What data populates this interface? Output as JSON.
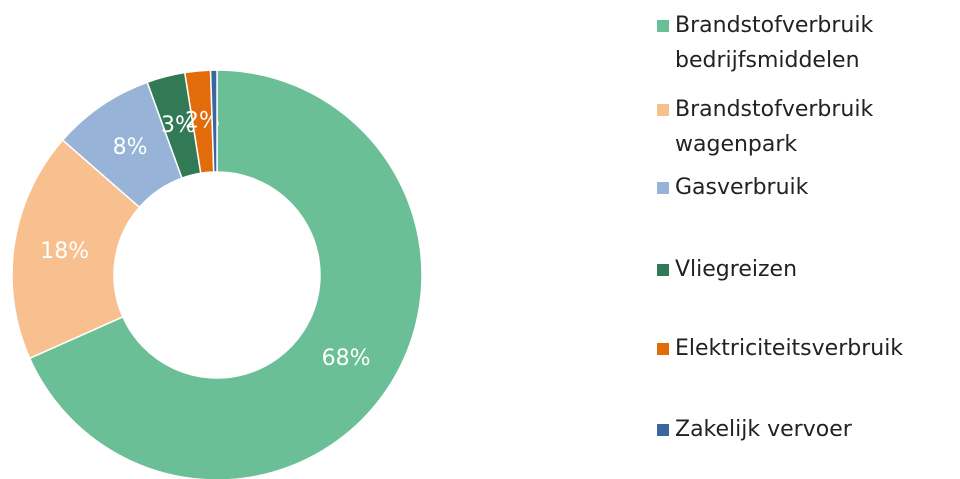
{
  "chart_data": {
    "type": "donut",
    "categories": [
      "Brandstofverbruik bedrijfsmiddelen",
      "Brandstofverbruik wagenpark",
      "Gasverbruik",
      "Vliegreizen",
      "Elektriciteitsverbruik",
      "Zakelijk vervoer"
    ],
    "values": [
      68,
      18,
      8,
      3,
      2,
      0.5
    ],
    "value_labels": [
      "68%",
      "18%",
      "8%",
      "3%",
      "2%",
      null
    ],
    "colors": [
      "#6bbf96",
      "#f9c08f",
      "#97b4d8",
      "#327a55",
      "#e36c0a",
      "#3c66a0"
    ],
    "legend": "right"
  }
}
